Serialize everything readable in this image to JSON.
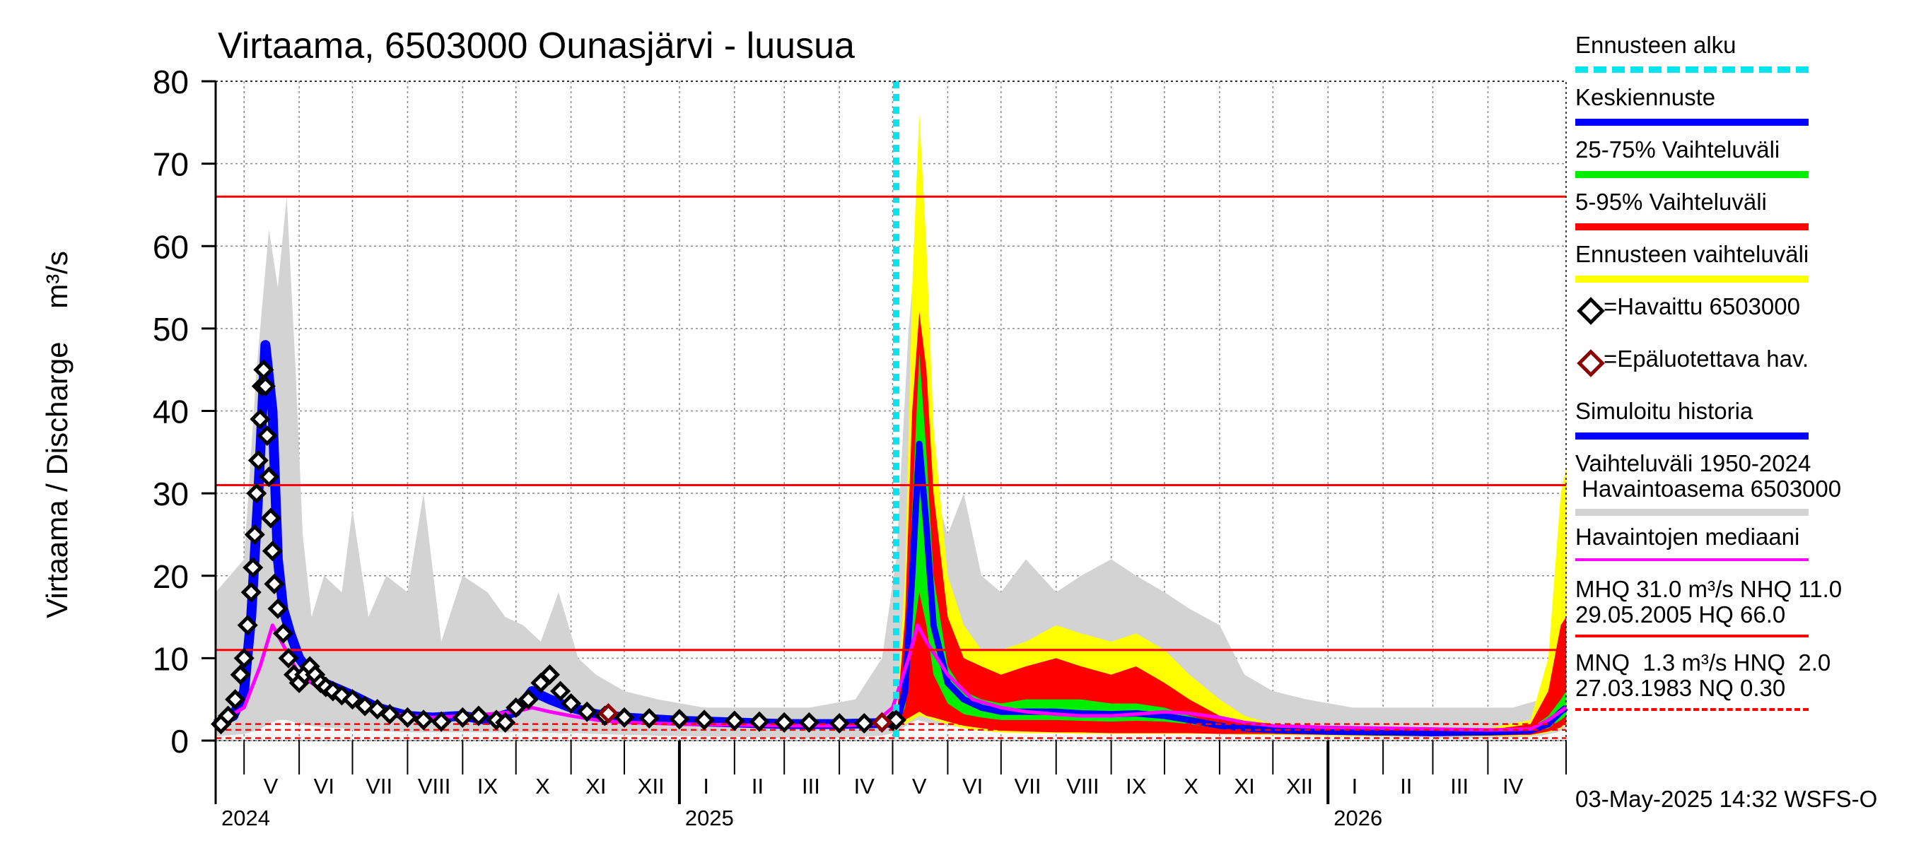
{
  "chart_data": {
    "type": "area",
    "title": "Virtaama, 6503000 Ounasjärvi - luusua",
    "ylabel": "Virtaama / Discharge    m³/s",
    "ylim": [
      0,
      80
    ],
    "yticks": [
      0,
      10,
      20,
      30,
      40,
      50,
      60,
      70,
      80
    ],
    "xlim": [
      "2024-04-15",
      "2026-05-15"
    ],
    "x_month_labels": [
      {
        "label": "V",
        "date": "2024-05-16"
      },
      {
        "label": "VI",
        "date": "2024-06-15"
      },
      {
        "label": "VII",
        "date": "2024-07-16"
      },
      {
        "label": "VIII",
        "date": "2024-08-16"
      },
      {
        "label": "IX",
        "date": "2024-09-15"
      },
      {
        "label": "X",
        "date": "2024-10-16"
      },
      {
        "label": "XI",
        "date": "2024-11-15"
      },
      {
        "label": "XII",
        "date": "2024-12-16"
      },
      {
        "label": "I",
        "date": "2025-01-16"
      },
      {
        "label": "II",
        "date": "2025-02-14"
      },
      {
        "label": "III",
        "date": "2025-03-16"
      },
      {
        "label": "IV",
        "date": "2025-04-15"
      },
      {
        "label": "V",
        "date": "2025-05-16"
      },
      {
        "label": "VI",
        "date": "2025-06-15"
      },
      {
        "label": "VII",
        "date": "2025-07-16"
      },
      {
        "label": "VIII",
        "date": "2025-08-16"
      },
      {
        "label": "IX",
        "date": "2025-09-15"
      },
      {
        "label": "X",
        "date": "2025-10-16"
      },
      {
        "label": "XI",
        "date": "2025-11-15"
      },
      {
        "label": "XII",
        "date": "2025-12-16"
      },
      {
        "label": "I",
        "date": "2026-01-16"
      },
      {
        "label": "II",
        "date": "2026-02-14"
      },
      {
        "label": "III",
        "date": "2026-03-16"
      },
      {
        "label": "IV",
        "date": "2026-04-15"
      }
    ],
    "month_gridlines": [
      "2024-05-01",
      "2024-06-01",
      "2024-07-01",
      "2024-08-01",
      "2024-09-01",
      "2024-10-01",
      "2024-11-01",
      "2024-12-01",
      "2025-01-01",
      "2025-02-01",
      "2025-03-01",
      "2025-04-01",
      "2025-05-01",
      "2025-06-01",
      "2025-07-01",
      "2025-08-01",
      "2025-09-01",
      "2025-10-01",
      "2025-11-01",
      "2025-12-01",
      "2026-01-01",
      "2026-02-01",
      "2026-03-01",
      "2026-04-01"
    ],
    "year_labels": [
      {
        "label": "2024",
        "date": "2024-04-15"
      },
      {
        "label": "2025",
        "date": "2025-01-01"
      },
      {
        "label": "2026",
        "date": "2026-01-01"
      }
    ],
    "forecast_start": "2025-05-03",
    "reference_lines": [
      {
        "name": "HQ",
        "value": 66.0,
        "style": "solid"
      },
      {
        "name": "MHQ",
        "value": 31.0,
        "style": "solid"
      },
      {
        "name": "NHQ",
        "value": 11.0,
        "style": "solid"
      },
      {
        "name": "HNQ",
        "value": 2.0,
        "style": "dashed"
      },
      {
        "name": "MNQ",
        "value": 1.3,
        "style": "dashed"
      },
      {
        "name": "NQ",
        "value": 0.3,
        "style": "dashed"
      }
    ],
    "historical_range": {
      "x": [
        "2024-04-15",
        "2024-05-01",
        "2024-05-08",
        "2024-05-15",
        "2024-05-20",
        "2024-05-25",
        "2024-05-30",
        "2024-06-03",
        "2024-06-08",
        "2024-06-15",
        "2024-06-25",
        "2024-07-01",
        "2024-07-10",
        "2024-07-20",
        "2024-08-01",
        "2024-08-10",
        "2024-08-20",
        "2024-09-01",
        "2024-09-15",
        "2024-09-25",
        "2024-10-05",
        "2024-10-15",
        "2024-10-25",
        "2024-11-05",
        "2024-11-15",
        "2024-12-01",
        "2024-12-20",
        "2025-01-15",
        "2025-02-15",
        "2025-03-15",
        "2025-04-10",
        "2025-04-25",
        "2025-05-03",
        "2025-05-10",
        "2025-05-15",
        "2025-05-20",
        "2025-05-25",
        "2025-06-01",
        "2025-06-10",
        "2025-06-20",
        "2025-07-01",
        "2025-07-15",
        "2025-08-01",
        "2025-08-15",
        "2025-09-01",
        "2025-09-15",
        "2025-10-01",
        "2025-10-15",
        "2025-11-01",
        "2025-11-15",
        "2025-12-01",
        "2025-12-20",
        "2026-01-15",
        "2026-02-15",
        "2026-03-15",
        "2026-04-15",
        "2026-05-01",
        "2026-05-10",
        "2026-05-15"
      ],
      "upper": [
        18,
        22,
        45,
        62,
        55,
        66,
        45,
        25,
        15,
        20,
        18,
        28,
        15,
        20,
        18,
        30,
        12,
        20,
        18,
        15,
        14,
        12,
        18,
        10,
        8,
        6,
        5,
        4,
        4,
        4,
        5,
        10,
        22,
        50,
        62,
        45,
        30,
        25,
        30,
        20,
        18,
        22,
        18,
        20,
        22,
        20,
        18,
        16,
        14,
        8,
        6,
        5,
        4,
        4,
        4,
        4,
        5,
        10,
        20
      ],
      "lower": [
        0.5,
        0.8,
        1.2,
        2,
        2.5,
        2.5,
        2.2,
        2,
        1.8,
        1.6,
        1.5,
        1.3,
        1.2,
        1.1,
        1,
        1,
        1,
        1,
        1,
        1,
        1,
        1,
        0.9,
        0.9,
        0.8,
        0.7,
        0.6,
        0.5,
        0.4,
        0.3,
        0.4,
        0.6,
        1,
        2,
        2.5,
        2.2,
        2,
        1.8,
        1.6,
        1.5,
        1.3,
        1.2,
        1.1,
        1,
        1,
        1,
        1,
        0.9,
        0.9,
        0.8,
        0.7,
        0.6,
        0.5,
        0.4,
        0.3,
        0.4,
        0.6,
        1,
        1.5
      ]
    },
    "forecast_range": {
      "x": [
        "2025-05-03",
        "2025-05-08",
        "2025-05-12",
        "2025-05-16",
        "2025-05-20",
        "2025-05-24",
        "2025-06-01",
        "2025-06-10",
        "2025-06-20",
        "2025-07-01",
        "2025-07-15",
        "2025-08-01",
        "2025-08-15",
        "2025-09-01",
        "2025-09-15",
        "2025-10-01",
        "2025-10-15",
        "2025-11-01",
        "2025-11-15",
        "2025-12-01",
        "2026-01-01",
        "2026-02-01",
        "2026-03-01",
        "2026-04-01",
        "2026-04-25",
        "2026-05-05",
        "2026-05-12",
        "2026-05-15"
      ],
      "upper": [
        2,
        20,
        55,
        76,
        60,
        38,
        20,
        14,
        11,
        11,
        12,
        14,
        13,
        12,
        13,
        11,
        8,
        5,
        3,
        2,
        1.8,
        1.5,
        1.4,
        1.5,
        2.5,
        10,
        30,
        33
      ],
      "lower": [
        1.5,
        2,
        2.5,
        3,
        2.8,
        2.5,
        2,
        1.5,
        1.2,
        1,
        0.9,
        0.9,
        0.8,
        0.8,
        0.8,
        0.8,
        0.8,
        0.8,
        0.7,
        0.7,
        0.6,
        0.5,
        0.5,
        0.5,
        0.6,
        1,
        1.5,
        2
      ]
    },
    "p5_95": {
      "x": [
        "2025-05-03",
        "2025-05-08",
        "2025-05-12",
        "2025-05-16",
        "2025-05-20",
        "2025-05-24",
        "2025-06-01",
        "2025-06-10",
        "2025-06-20",
        "2025-07-01",
        "2025-07-15",
        "2025-08-01",
        "2025-08-15",
        "2025-09-01",
        "2025-09-15",
        "2025-10-01",
        "2025-10-15",
        "2025-11-01",
        "2025-11-15",
        "2025-12-01",
        "2026-01-01",
        "2026-02-01",
        "2026-03-01",
        "2026-04-01",
        "2026-04-25",
        "2026-05-05",
        "2026-05-12",
        "2026-05-15"
      ],
      "upper": [
        2,
        15,
        40,
        52,
        45,
        30,
        15,
        10,
        9,
        8,
        9,
        10,
        9,
        8,
        9,
        7,
        5,
        3,
        2,
        1.8,
        1.5,
        1.3,
        1.2,
        1.3,
        2,
        6,
        14,
        15
      ],
      "lower": [
        1.6,
        2.5,
        3,
        3.5,
        3,
        2.8,
        2.3,
        1.8,
        1.5,
        1.2,
        1.1,
        1,
        1,
        0.9,
        0.9,
        0.9,
        0.9,
        0.8,
        0.8,
        0.8,
        0.7,
        0.6,
        0.6,
        0.6,
        0.7,
        1.1,
        1.6,
        2.2
      ]
    },
    "p25_75": {
      "x": [
        "2025-05-03",
        "2025-05-08",
        "2025-05-12",
        "2025-05-16",
        "2025-05-20",
        "2025-05-24",
        "2025-06-01",
        "2025-06-10",
        "2025-06-20",
        "2025-07-01",
        "2025-07-15",
        "2025-08-01",
        "2025-08-15",
        "2025-09-01",
        "2025-09-15",
        "2025-10-01",
        "2025-10-15",
        "2025-11-01",
        "2025-11-15",
        "2025-12-01",
        "2026-01-01",
        "2026-02-01",
        "2026-03-01",
        "2026-04-01",
        "2026-04-25",
        "2026-05-05",
        "2026-05-12",
        "2026-05-15"
      ],
      "upper": [
        1.9,
        8,
        28,
        47,
        35,
        20,
        9,
        6,
        5,
        4.5,
        5,
        5,
        5,
        4.5,
        4.5,
        4,
        3,
        2,
        1.6,
        1.4,
        1.2,
        1.1,
        1,
        1.1,
        1.5,
        3,
        5,
        6
      ],
      "lower": [
        1.7,
        4,
        12,
        18,
        14,
        8,
        4.5,
        3.2,
        2.8,
        2.5,
        2.5,
        2.5,
        2.4,
        2.3,
        2.4,
        2.3,
        2,
        1.5,
        1.3,
        1.2,
        1,
        0.9,
        0.9,
        0.9,
        1,
        1.5,
        2.5,
        3
      ]
    },
    "mean_forecast": {
      "x": [
        "2025-05-03",
        "2025-05-08",
        "2025-05-12",
        "2025-05-16",
        "2025-05-20",
        "2025-05-24",
        "2025-06-01",
        "2025-06-10",
        "2025-06-20",
        "2025-07-01",
        "2025-07-15",
        "2025-08-01",
        "2025-08-15",
        "2025-09-01",
        "2025-09-15",
        "2025-10-01",
        "2025-10-15",
        "2025-11-01",
        "2025-11-15",
        "2025-12-01",
        "2026-01-01",
        "2026-02-01",
        "2026-03-01",
        "2026-04-01",
        "2026-04-25",
        "2026-05-05",
        "2026-05-12",
        "2026-05-15"
      ],
      "values": [
        1.8,
        6,
        20,
        36,
        26,
        14,
        7,
        5,
        4,
        3.5,
        3.5,
        3.5,
        3.3,
        3.2,
        3.3,
        3,
        2.5,
        1.8,
        1.5,
        1.3,
        1.1,
        1,
        0.9,
        1,
        1.2,
        2,
        3.5,
        4
      ]
    },
    "simulated_history": {
      "x": [
        "2024-04-15",
        "2024-04-25",
        "2024-05-01",
        "2024-05-05",
        "2024-05-09",
        "2024-05-13",
        "2024-05-17",
        "2024-05-20",
        "2024-05-23",
        "2024-05-27",
        "2024-06-01",
        "2024-06-08",
        "2024-06-15",
        "2024-07-01",
        "2024-07-15",
        "2024-08-01",
        "2024-08-15",
        "2024-09-01",
        "2024-09-15",
        "2024-10-01",
        "2024-10-10",
        "2024-10-20",
        "2024-11-01",
        "2024-11-15",
        "2024-12-01",
        "2025-01-01",
        "2025-02-01",
        "2025-03-01",
        "2025-04-01",
        "2025-04-20",
        "2025-05-03"
      ],
      "values": [
        2,
        3,
        6,
        15,
        30,
        48,
        40,
        22,
        16,
        13,
        10,
        8,
        7,
        5.5,
        4,
        3,
        2.8,
        3,
        2.5,
        3.5,
        6,
        5,
        4,
        3.2,
        2.8,
        2.4,
        2.2,
        2,
        2,
        2.1,
        2.2
      ]
    },
    "observed": {
      "x": [
        "2024-04-18",
        "2024-04-22",
        "2024-04-26",
        "2024-04-29",
        "2024-05-01",
        "2024-05-03",
        "2024-05-05",
        "2024-05-06",
        "2024-05-07",
        "2024-05-08",
        "2024-05-09",
        "2024-05-10",
        "2024-05-11",
        "2024-05-12",
        "2024-05-13",
        "2024-05-14",
        "2024-05-15",
        "2024-05-16",
        "2024-05-17",
        "2024-05-18",
        "2024-05-20",
        "2024-05-23",
        "2024-05-26",
        "2024-05-29",
        "2024-06-01",
        "2024-06-04",
        "2024-06-07",
        "2024-06-10",
        "2024-06-13",
        "2024-06-16",
        "2024-06-20",
        "2024-06-25",
        "2024-07-01",
        "2024-07-08",
        "2024-07-15",
        "2024-07-22",
        "2024-08-01",
        "2024-08-10",
        "2024-08-20",
        "2024-09-01",
        "2024-09-10",
        "2024-09-20",
        "2024-09-25",
        "2024-10-01",
        "2024-10-08",
        "2024-10-15",
        "2024-10-20",
        "2024-10-26",
        "2024-11-01",
        "2024-11-10",
        "2024-11-20",
        "2024-12-01",
        "2024-12-15",
        "2025-01-01",
        "2025-01-15",
        "2025-02-01",
        "2025-02-15",
        "2025-03-01",
        "2025-03-15",
        "2025-04-01",
        "2025-04-15",
        "2025-04-25",
        "2025-05-01",
        "2025-05-03"
      ],
      "values": [
        2,
        3,
        5,
        8,
        10,
        14,
        18,
        21,
        25,
        30,
        34,
        39,
        43,
        45,
        43,
        37,
        32,
        27,
        23,
        19,
        16,
        13,
        10,
        8,
        7,
        8,
        9,
        8,
        7,
        6.5,
        6,
        5.5,
        5,
        4.2,
        3.8,
        3.2,
        2.8,
        2.5,
        2.3,
        2.8,
        3,
        2.5,
        2.2,
        4,
        5,
        7,
        8,
        6,
        4.5,
        3.5,
        3,
        2.8,
        2.7,
        2.6,
        2.5,
        2.4,
        2.3,
        2.2,
        2.2,
        2.1,
        2.1,
        2.2,
        2.4,
        2.5
      ],
      "unreliable_x": [
        "2024-11-22",
        "2025-04-25"
      ],
      "unreliable_values": [
        3.3,
        2.2
      ]
    },
    "observed_median": {
      "x": [
        "2024-04-15",
        "2024-05-01",
        "2024-05-10",
        "2024-05-17",
        "2024-05-22",
        "2024-06-01",
        "2024-06-15",
        "2024-07-01",
        "2024-07-15",
        "2024-08-01",
        "2024-08-15",
        "2024-09-01",
        "2024-09-15",
        "2024-10-01",
        "2024-10-10",
        "2024-10-20",
        "2024-11-01",
        "2024-11-15",
        "2024-12-01",
        "2025-01-01",
        "2025-02-01",
        "2025-03-01",
        "2025-04-01",
        "2025-04-20",
        "2025-05-01",
        "2025-05-10",
        "2025-05-15",
        "2025-05-20",
        "2025-06-01",
        "2025-06-15",
        "2025-07-01",
        "2025-07-15",
        "2025-08-01",
        "2025-08-15",
        "2025-09-01",
        "2025-09-15",
        "2025-10-01",
        "2025-10-15",
        "2025-11-01",
        "2025-11-15",
        "2025-12-01",
        "2026-01-01",
        "2026-02-01",
        "2026-03-01",
        "2026-04-01",
        "2026-04-25",
        "2026-05-05",
        "2026-05-15"
      ],
      "values": [
        2,
        4,
        9,
        14,
        12,
        8,
        6,
        4.5,
        3.5,
        3,
        2.8,
        3,
        3.2,
        3.5,
        4,
        3.5,
        3,
        2.5,
        2.2,
        2,
        1.9,
        1.8,
        1.8,
        2,
        4,
        10,
        14,
        12,
        8,
        5,
        4,
        3.5,
        3.2,
        3,
        3,
        3.2,
        3.5,
        3.3,
        2.8,
        2.2,
        1.8,
        1.6,
        1.5,
        1.4,
        1.3,
        1.4,
        2.5,
        4
      ]
    },
    "legend": [
      {
        "label": "Ennusteen alku",
        "color": "#00e5ee",
        "style": "dashed"
      },
      {
        "label": "Keskiennuste",
        "color": "#0000ff",
        "style": "solid"
      },
      {
        "label": "25-75% Vaihteluväli",
        "color": "#00ee00",
        "style": "solid"
      },
      {
        "label": "5-95% Vaihteluväli",
        "color": "#ff0000",
        "style": "solid"
      },
      {
        "label": "Ennusteen vaihteluväli",
        "color": "#ffff00",
        "style": "solid"
      },
      {
        "label": "=Havaittu 6503000",
        "color": "#000000",
        "style": "diamond"
      },
      {
        "label": "=Epäluotettava hav.",
        "color": "#8b0000",
        "style": "diamond"
      },
      {
        "label": "Simuloitu historia",
        "color": "#0000ff",
        "style": "solid"
      },
      {
        "label": "Vaihteluväli 1950-2024\n Havaintoasema 6503000",
        "color": "#d3d3d3",
        "style": "solid"
      },
      {
        "label": "Havaintojen mediaani",
        "color": "#ff00ff",
        "style": "thin"
      },
      {
        "label": "MHQ 31.0 m³/s NHQ 11.0\n29.05.2005 HQ 66.0",
        "color": "#ff0000",
        "style": "thin"
      },
      {
        "label": "MNQ  1.3 m³/s HNQ  2.0\n27.03.1983 NQ 0.30",
        "color": "#ff0000",
        "style": "thin-dash"
      }
    ],
    "footer": "03-May-2025 14:32 WSFS-O"
  }
}
